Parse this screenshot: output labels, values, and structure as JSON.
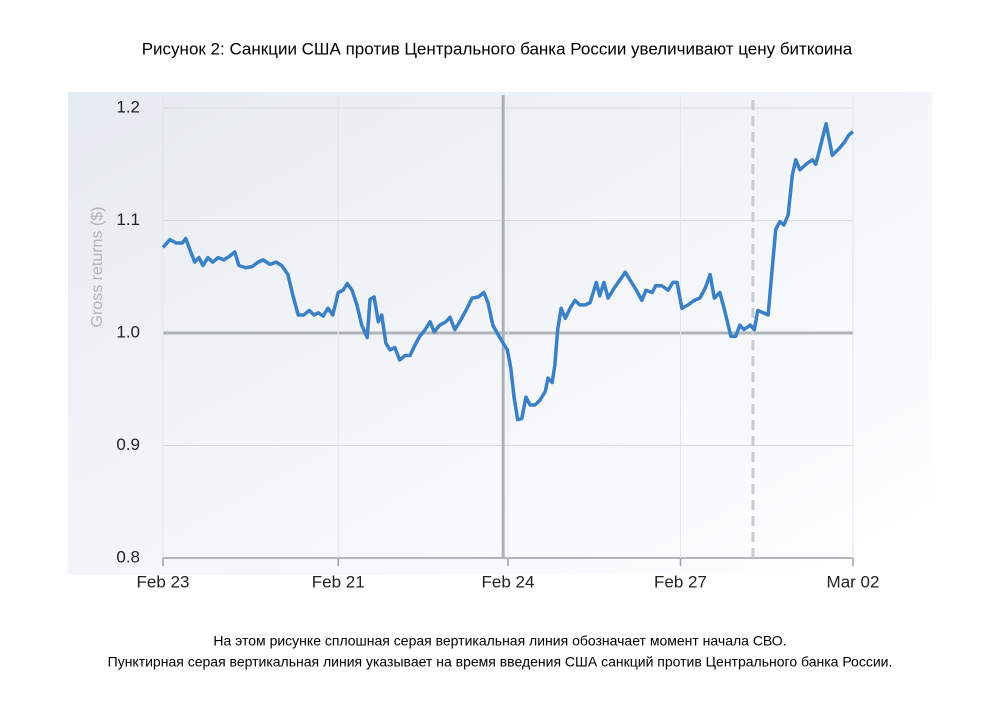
{
  "chart_data": {
    "type": "line",
    "title": "Рисунок 2: Санкции США против Центрального банка России увеличивают цену биткоина",
    "ylabel": "Gross returns ($)",
    "notes": [
      "На этом рисунке сплошная серая вертикальная линия обозначает момент начала СВО.",
      "Пунктирная серая вертикальная линия указывает на время введения США санкций против Центрального банка России."
    ],
    "xlim": [
      0,
      100
    ],
    "xticks": [
      {
        "value": 0,
        "label": "Feb 23"
      },
      {
        "value": 25.4,
        "label": "Feb 21"
      },
      {
        "value": 50,
        "label": "Feb 24"
      },
      {
        "value": 75,
        "label": "Feb 27"
      },
      {
        "value": 100,
        "label": "Mar 02"
      }
    ],
    "ylim": [
      0.8,
      1.2
    ],
    "yticks": [
      0.8,
      0.9,
      {
        "value": 1,
        "label": "1.0"
      },
      1.1,
      1.2
    ],
    "baseline": 1,
    "grid": true,
    "vlines": [
      {
        "x": 49.3,
        "dashed": false
      },
      {
        "x": 85.5,
        "dashed": true
      }
    ],
    "series": [
      {
        "color": "#3a80c6",
        "x": [
          0,
          1.0,
          1.9,
          2.8,
          3.3,
          3.9,
          4.6,
          5.2,
          5.8,
          6.5,
          7.2,
          8.0,
          8.8,
          9.6,
          10.4,
          11.0,
          12.0,
          12.9,
          13.8,
          14.5,
          15.5,
          16.4,
          17.2,
          18.1,
          18.8,
          19.6,
          20.4,
          21.2,
          21.9,
          22.5,
          23.2,
          23.9,
          24.6,
          25.4,
          26.1,
          26.7,
          27.4,
          28.1,
          28.8,
          29.6,
          30.0,
          30.6,
          31.2,
          31.7,
          32.3,
          32.9,
          33.6,
          34.3,
          35.1,
          35.8,
          36.5,
          37.2,
          38.0,
          38.7,
          39.3,
          40.1,
          41.0,
          41.6,
          42.3,
          43.0,
          43.9,
          44.8,
          45.7,
          46.5,
          47.1,
          47.8,
          48.8,
          49.9,
          50.4,
          50.9,
          51.4,
          52.0,
          52.6,
          53.2,
          53.9,
          54.6,
          55.4,
          55.8,
          56.4,
          56.8,
          57.2,
          57.7,
          58.3,
          59.0,
          59.7,
          60.4,
          61.2,
          61.9,
          62.8,
          63.3,
          63.9,
          64.5,
          65.4,
          66.2,
          67.0,
          67.7,
          68.6,
          69.4,
          70.0,
          70.9,
          71.4,
          72.3,
          73.2,
          73.9,
          74.5,
          75.2,
          76.1,
          77.0,
          77.8,
          78.6,
          79.3,
          79.9,
          80.7,
          81.4,
          82.3,
          83.0,
          83.6,
          84.2,
          85.1,
          85.7,
          86.2,
          87.0,
          87.7,
          88.3,
          88.8,
          89.4,
          90.0,
          90.6,
          91.2,
          91.7,
          92.3,
          93.2,
          94.1,
          94.6,
          95.2,
          96.1,
          97.0,
          98.0,
          98.8,
          99.4,
          100
        ],
        "values": [
          1.076,
          1.083,
          1.08,
          1.08,
          1.084,
          1.074,
          1.063,
          1.067,
          1.06,
          1.067,
          1.063,
          1.067,
          1.065,
          1.068,
          1.072,
          1.06,
          1.058,
          1.059,
          1.063,
          1.065,
          1.061,
          1.063,
          1.06,
          1.052,
          1.034,
          1.016,
          1.016,
          1.02,
          1.016,
          1.018,
          1.015,
          1.022,
          1.016,
          1.036,
          1.038,
          1.044,
          1.038,
          1.025,
          1.007,
          0.996,
          1.03,
          1.032,
          1.01,
          1.016,
          0.991,
          0.985,
          0.987,
          0.976,
          0.98,
          0.98,
          0.989,
          0.997,
          1.003,
          1.01,
          1.001,
          1.007,
          1.01,
          1.014,
          1.003,
          1.01,
          1.02,
          1.031,
          1.032,
          1.036,
          1.027,
          1.007,
          0.996,
          0.985,
          0.969,
          0.942,
          0.923,
          0.924,
          0.943,
          0.936,
          0.936,
          0.94,
          0.948,
          0.96,
          0.956,
          0.972,
          1.003,
          1.022,
          1.013,
          1.022,
          1.029,
          1.025,
          1.025,
          1.027,
          1.045,
          1.033,
          1.045,
          1.031,
          1.04,
          1.047,
          1.054,
          1.047,
          1.038,
          1.029,
          1.038,
          1.036,
          1.042,
          1.042,
          1.038,
          1.045,
          1.045,
          1.022,
          1.025,
          1.029,
          1.031,
          1.04,
          1.052,
          1.031,
          1.036,
          1.02,
          0.997,
          0.997,
          1.007,
          1.003,
          1.007,
          1.003,
          1.02,
          1.018,
          1.016,
          1.058,
          1.092,
          1.099,
          1.096,
          1.105,
          1.14,
          1.154,
          1.145,
          1.15,
          1.154,
          1.15,
          1.164,
          1.186,
          1.158,
          1.164,
          1.17,
          1.176,
          1.179
        ]
      }
    ]
  }
}
